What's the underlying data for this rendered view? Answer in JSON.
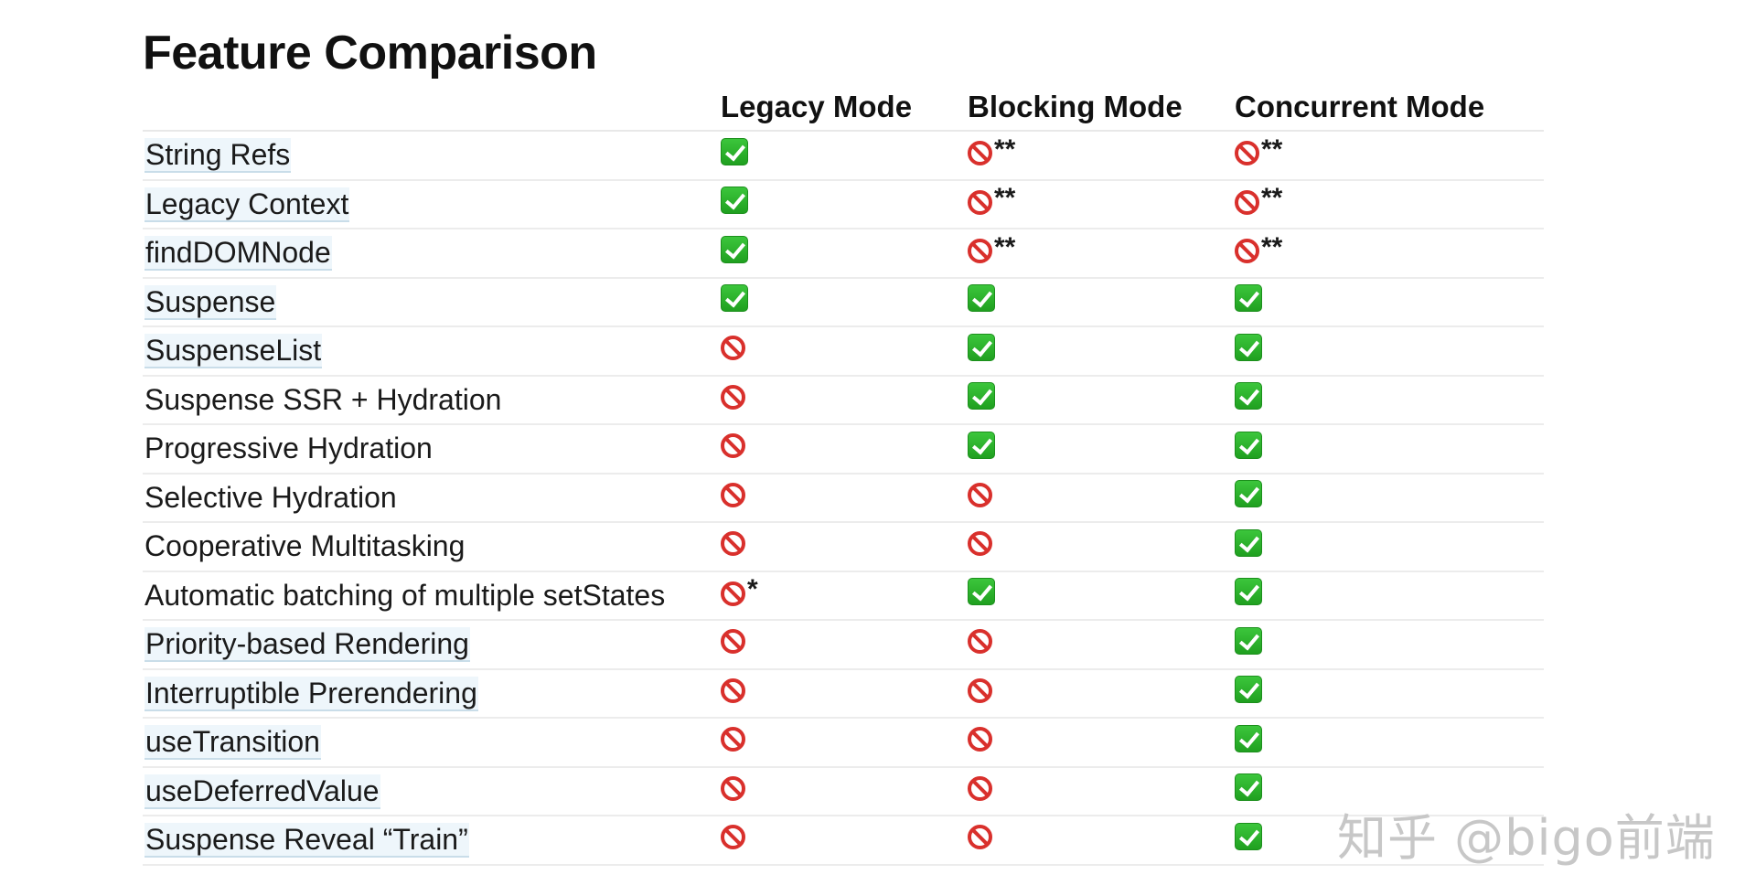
{
  "title": "Feature Comparison",
  "columns": {
    "feature": "",
    "legacy": "Legacy Mode",
    "blocking": "Blocking Mode",
    "concurrent": "Concurrent Mode"
  },
  "icons": {
    "yes": "check-mark-icon",
    "no": "prohibited-icon"
  },
  "colors": {
    "check_green": "#2eb82e",
    "prohibited_red": "#d9302c",
    "link_highlight": "#eef6fb"
  },
  "rows": [
    {
      "feature": "String Refs",
      "link": true,
      "legacy": "yes",
      "legacy_note": "",
      "blocking": "no",
      "blocking_note": "**",
      "concurrent": "no",
      "concurrent_note": "**"
    },
    {
      "feature": "Legacy Context",
      "link": true,
      "legacy": "yes",
      "legacy_note": "",
      "blocking": "no",
      "blocking_note": "**",
      "concurrent": "no",
      "concurrent_note": "**"
    },
    {
      "feature": "findDOMNode",
      "link": true,
      "legacy": "yes",
      "legacy_note": "",
      "blocking": "no",
      "blocking_note": "**",
      "concurrent": "no",
      "concurrent_note": "**"
    },
    {
      "feature": "Suspense",
      "link": true,
      "legacy": "yes",
      "legacy_note": "",
      "blocking": "yes",
      "blocking_note": "",
      "concurrent": "yes",
      "concurrent_note": ""
    },
    {
      "feature": "SuspenseList",
      "link": true,
      "legacy": "no",
      "legacy_note": "",
      "blocking": "yes",
      "blocking_note": "",
      "concurrent": "yes",
      "concurrent_note": ""
    },
    {
      "feature": "Suspense SSR + Hydration",
      "link": false,
      "legacy": "no",
      "legacy_note": "",
      "blocking": "yes",
      "blocking_note": "",
      "concurrent": "yes",
      "concurrent_note": ""
    },
    {
      "feature": "Progressive Hydration",
      "link": false,
      "legacy": "no",
      "legacy_note": "",
      "blocking": "yes",
      "blocking_note": "",
      "concurrent": "yes",
      "concurrent_note": ""
    },
    {
      "feature": "Selective Hydration",
      "link": false,
      "legacy": "no",
      "legacy_note": "",
      "blocking": "no",
      "blocking_note": "",
      "concurrent": "yes",
      "concurrent_note": ""
    },
    {
      "feature": "Cooperative Multitasking",
      "link": false,
      "legacy": "no",
      "legacy_note": "",
      "blocking": "no",
      "blocking_note": "",
      "concurrent": "yes",
      "concurrent_note": ""
    },
    {
      "feature": "Automatic batching of multiple setStates",
      "link": false,
      "legacy": "no",
      "legacy_note": "*",
      "blocking": "yes",
      "blocking_note": "",
      "concurrent": "yes",
      "concurrent_note": ""
    },
    {
      "feature": "Priority-based Rendering",
      "link": true,
      "legacy": "no",
      "legacy_note": "",
      "blocking": "no",
      "blocking_note": "",
      "concurrent": "yes",
      "concurrent_note": ""
    },
    {
      "feature": "Interruptible Prerendering",
      "link": true,
      "legacy": "no",
      "legacy_note": "",
      "blocking": "no",
      "blocking_note": "",
      "concurrent": "yes",
      "concurrent_note": ""
    },
    {
      "feature": "useTransition",
      "link": true,
      "legacy": "no",
      "legacy_note": "",
      "blocking": "no",
      "blocking_note": "",
      "concurrent": "yes",
      "concurrent_note": ""
    },
    {
      "feature": "useDeferredValue",
      "link": true,
      "legacy": "no",
      "legacy_note": "",
      "blocking": "no",
      "blocking_note": "",
      "concurrent": "yes",
      "concurrent_note": ""
    },
    {
      "feature": "Suspense Reveal “Train”",
      "link": true,
      "legacy": "no",
      "legacy_note": "",
      "blocking": "no",
      "blocking_note": "",
      "concurrent": "yes",
      "concurrent_note": ""
    }
  ],
  "watermark": "知乎 @bigo前端"
}
